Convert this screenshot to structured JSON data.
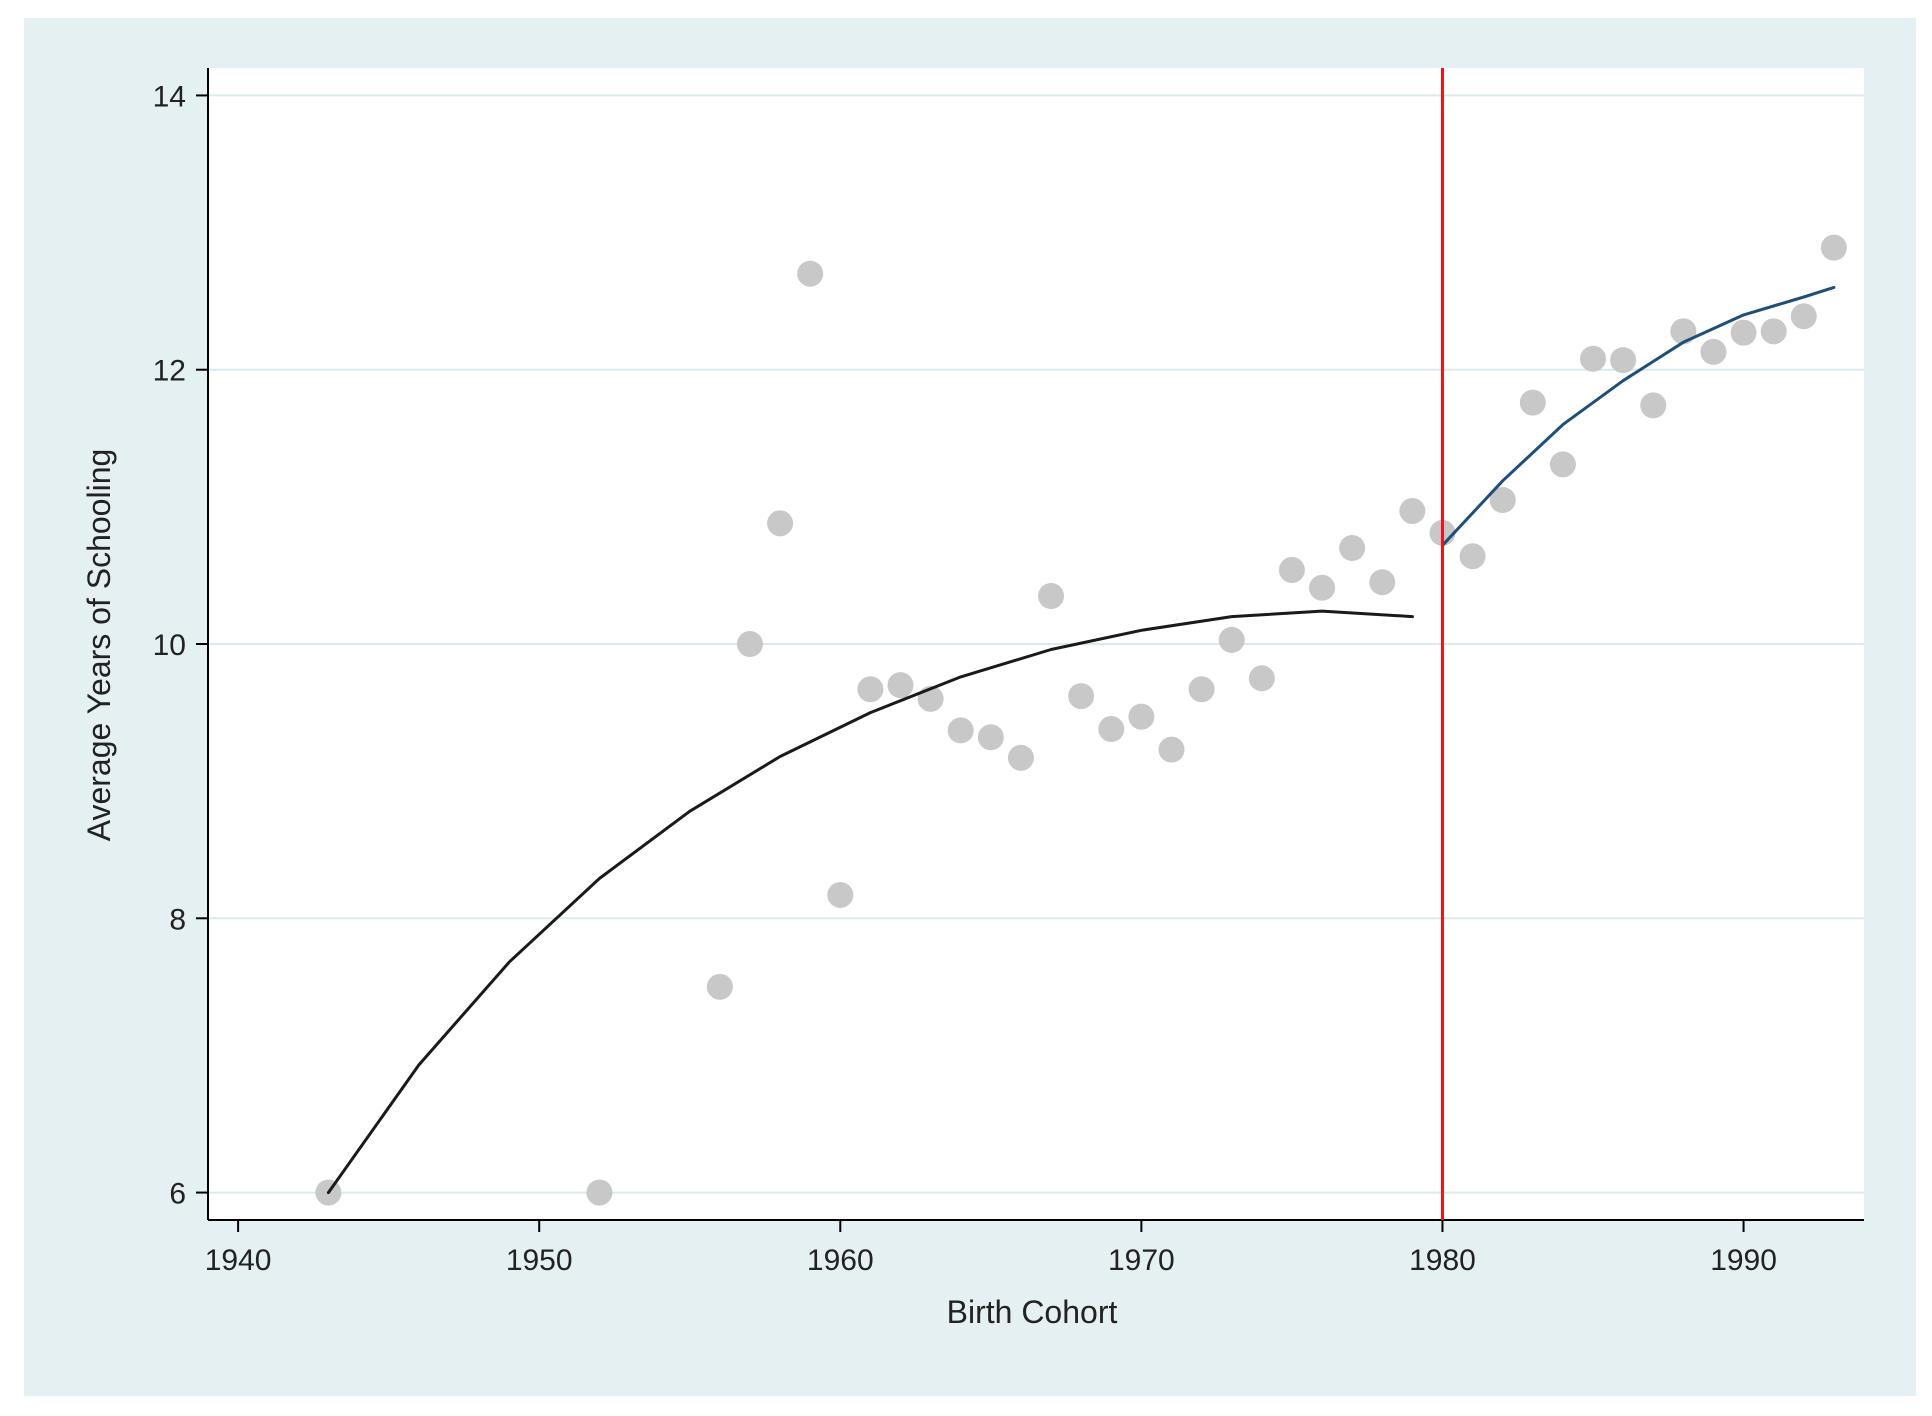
{
  "chart_data": {
    "type": "scatter",
    "title": "",
    "xlabel": "Birth Cohort",
    "ylabel": "Average Years of Schooling",
    "xlim": [
      1939,
      1994
    ],
    "ylim": [
      5.8,
      14.2
    ],
    "xticks": [
      1940,
      1950,
      1960,
      1970,
      1980,
      1990
    ],
    "yticks": [
      6,
      8,
      10,
      12,
      14
    ],
    "grid": "horizontal",
    "legend": "none",
    "scatter_points": [
      {
        "x": 1943,
        "y": 6.0
      },
      {
        "x": 1952,
        "y": 6.0
      },
      {
        "x": 1956,
        "y": 7.5
      },
      {
        "x": 1957,
        "y": 10.0
      },
      {
        "x": 1958,
        "y": 10.88
      },
      {
        "x": 1959,
        "y": 12.7
      },
      {
        "x": 1960,
        "y": 8.17
      },
      {
        "x": 1961,
        "y": 9.67
      },
      {
        "x": 1962,
        "y": 9.7
      },
      {
        "x": 1963,
        "y": 9.6
      },
      {
        "x": 1964,
        "y": 9.37
      },
      {
        "x": 1965,
        "y": 9.32
      },
      {
        "x": 1966,
        "y": 9.17
      },
      {
        "x": 1967,
        "y": 10.35
      },
      {
        "x": 1968,
        "y": 9.62
      },
      {
        "x": 1969,
        "y": 9.38
      },
      {
        "x": 1970,
        "y": 9.47
      },
      {
        "x": 1971,
        "y": 9.23
      },
      {
        "x": 1972,
        "y": 9.67
      },
      {
        "x": 1973,
        "y": 10.03
      },
      {
        "x": 1974,
        "y": 9.75
      },
      {
        "x": 1975,
        "y": 10.54
      },
      {
        "x": 1976,
        "y": 10.41
      },
      {
        "x": 1977,
        "y": 10.7
      },
      {
        "x": 1978,
        "y": 10.45
      },
      {
        "x": 1979,
        "y": 10.97
      },
      {
        "x": 1980,
        "y": 10.81
      },
      {
        "x": 1981,
        "y": 10.64
      },
      {
        "x": 1982,
        "y": 11.05
      },
      {
        "x": 1983,
        "y": 11.76
      },
      {
        "x": 1984,
        "y": 11.31
      },
      {
        "x": 1985,
        "y": 12.08
      },
      {
        "x": 1986,
        "y": 12.07
      },
      {
        "x": 1987,
        "y": 11.74
      },
      {
        "x": 1988,
        "y": 12.28
      },
      {
        "x": 1989,
        "y": 12.13
      },
      {
        "x": 1990,
        "y": 12.27
      },
      {
        "x": 1991,
        "y": 12.28
      },
      {
        "x": 1992,
        "y": 12.39
      },
      {
        "x": 1993,
        "y": 12.89
      }
    ],
    "fit_pre_1980": {
      "x": [
        1943,
        1946,
        1949,
        1952,
        1955,
        1958,
        1961,
        1964,
        1967,
        1970,
        1973,
        1976,
        1979
      ],
      "y": [
        6.0,
        6.93,
        7.68,
        8.29,
        8.78,
        9.18,
        9.5,
        9.76,
        9.96,
        10.1,
        10.2,
        10.24,
        10.2
      ]
    },
    "fit_post_1980": {
      "x": [
        1980,
        1982,
        1984,
        1986,
        1988,
        1990,
        1992,
        1993
      ],
      "y": [
        10.72,
        11.19,
        11.6,
        11.92,
        12.2,
        12.4,
        12.53,
        12.6
      ]
    },
    "cutoff_x": 1980,
    "colors": {
      "background": "#e4f0f2",
      "plot_area": "#ffffff",
      "gridline": "#dbe9ec",
      "points": "#c8c8c8",
      "fit_pre": "#1a1a1a",
      "fit_post": "#1f4e79",
      "cutoff_line": "#e8161b",
      "axis": "#000000"
    }
  }
}
